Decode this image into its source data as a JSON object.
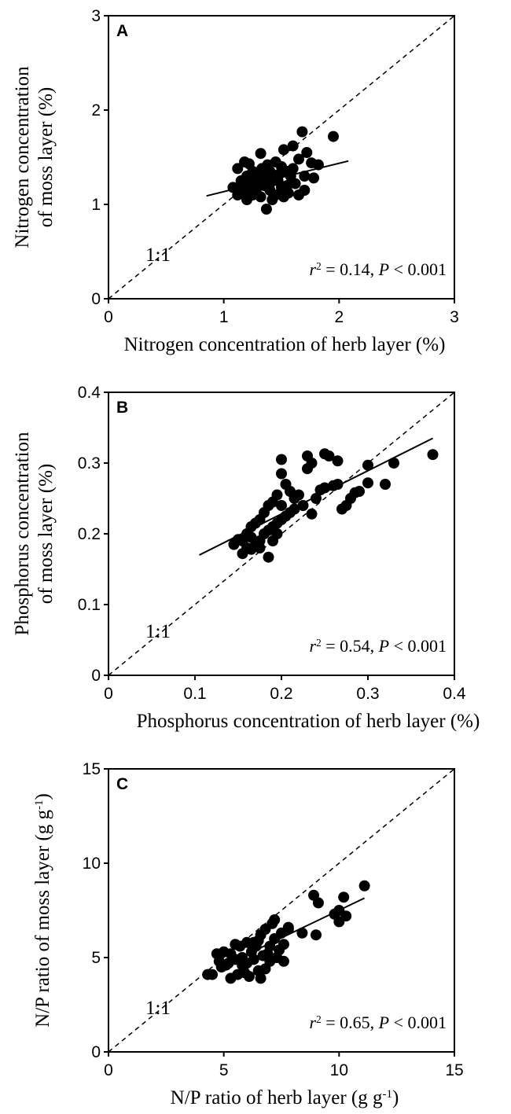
{
  "chart_data": [
    {
      "type": "scatter",
      "panel": "A",
      "xlabel": [
        [
          {
            "text": "Nitrogen concentration of herb layer (%)"
          }
        ]
      ],
      "ylabel": [
        [
          {
            "text": "Nitrogen concentration"
          }
        ],
        [
          {
            "text": "of  moss layer (%)"
          }
        ]
      ],
      "xlim": [
        0,
        3
      ],
      "ylim": [
        0,
        3
      ],
      "xticks": [
        0,
        1,
        2,
        3
      ],
      "yticks": [
        0,
        1,
        2,
        3
      ],
      "color": "#000000",
      "reference_label": "1:1",
      "stat_label": [
        {
          "text": "r",
          "italic": true
        },
        {
          "text": "2",
          "sup": true
        },
        {
          "text": " = 0.14, "
        },
        {
          "text": "P",
          "italic": true
        },
        {
          "text": " < 0.001"
        }
      ],
      "fit": {
        "x": [
          0.85,
          2.08
        ],
        "y": [
          1.09,
          1.46
        ]
      },
      "x": [
        1.95,
        1.68,
        1.6,
        1.52,
        1.32,
        1.72,
        1.82,
        1.76,
        1.65,
        1.45,
        1.38,
        1.18,
        1.22,
        1.12,
        1.25,
        1.3,
        1.35,
        1.4,
        1.48,
        1.55,
        1.6,
        1.7,
        1.78,
        1.62,
        1.55,
        1.5,
        1.45,
        1.4,
        1.35,
        1.28,
        1.22,
        1.18,
        1.15,
        1.08,
        1.12,
        1.2,
        1.25,
        1.32,
        1.37,
        1.42,
        1.52,
        1.65,
        1.7,
        1.58,
        1.47,
        1.3,
        1.2,
        1.4,
        1.33,
        1.27,
        1.16,
        1.23,
        1.5,
        1.56,
        1.44
      ],
      "y": [
        1.72,
        1.77,
        1.62,
        1.58,
        1.54,
        1.55,
        1.42,
        1.44,
        1.48,
        1.45,
        1.42,
        1.45,
        1.43,
        1.38,
        1.35,
        1.3,
        1.28,
        1.35,
        1.32,
        1.35,
        1.38,
        1.3,
        1.28,
        1.22,
        1.2,
        1.18,
        1.1,
        1.15,
        1.2,
        1.15,
        1.2,
        1.12,
        1.25,
        1.18,
        1.1,
        1.05,
        1.1,
        1.08,
        0.95,
        1.05,
        1.08,
        1.1,
        1.15,
        1.3,
        1.25,
        1.25,
        1.3,
        1.22,
        1.38,
        1.22,
        1.16,
        1.27,
        1.4,
        1.12,
        1.3
      ]
    },
    {
      "type": "scatter",
      "panel": "B",
      "xlabel": [
        [
          {
            "text": "Phosphorus concentration of herb layer (%)"
          }
        ]
      ],
      "ylabel": [
        [
          {
            "text": "Phosphorus concentration"
          }
        ],
        [
          {
            "text": "of  moss layer (%)"
          }
        ]
      ],
      "xlim": [
        0,
        0.4
      ],
      "ylim": [
        0,
        0.4
      ],
      "xticks": [
        0,
        0.1,
        0.2,
        0.3,
        0.4
      ],
      "yticks": [
        0,
        0.1,
        0.2,
        0.3,
        0.4
      ],
      "color": "#000000",
      "reference_label": "1:1",
      "stat_label": [
        {
          "text": "r",
          "italic": true
        },
        {
          "text": "2",
          "sup": true
        },
        {
          "text": " = 0.54, "
        },
        {
          "text": "P",
          "italic": true
        },
        {
          "text": " < 0.001"
        }
      ],
      "fit": {
        "x": [
          0.105,
          0.375
        ],
        "y": [
          0.17,
          0.335
        ]
      },
      "x": [
        0.375,
        0.33,
        0.32,
        0.3,
        0.3,
        0.29,
        0.285,
        0.28,
        0.275,
        0.27,
        0.265,
        0.25,
        0.255,
        0.23,
        0.235,
        0.23,
        0.2,
        0.2,
        0.205,
        0.21,
        0.215,
        0.22,
        0.24,
        0.245,
        0.26,
        0.265,
        0.25,
        0.235,
        0.225,
        0.195,
        0.19,
        0.185,
        0.18,
        0.175,
        0.17,
        0.165,
        0.16,
        0.155,
        0.15,
        0.145,
        0.155,
        0.16,
        0.165,
        0.17,
        0.175,
        0.18,
        0.185,
        0.19,
        0.195,
        0.2,
        0.205,
        0.21,
        0.2,
        0.185,
        0.19,
        0.175,
        0.195,
        0.165,
        0.215
      ],
      "y": [
        0.312,
        0.3,
        0.27,
        0.297,
        0.272,
        0.26,
        0.258,
        0.25,
        0.24,
        0.235,
        0.303,
        0.313,
        0.31,
        0.31,
        0.3,
        0.292,
        0.305,
        0.285,
        0.27,
        0.26,
        0.25,
        0.255,
        0.25,
        0.262,
        0.268,
        0.27,
        0.265,
        0.228,
        0.24,
        0.255,
        0.245,
        0.24,
        0.23,
        0.22,
        0.215,
        0.21,
        0.2,
        0.19,
        0.192,
        0.185,
        0.172,
        0.18,
        0.178,
        0.185,
        0.19,
        0.2,
        0.205,
        0.21,
        0.215,
        0.22,
        0.225,
        0.23,
        0.24,
        0.167,
        0.19,
        0.18,
        0.2,
        0.195,
        0.235
      ]
    },
    {
      "type": "scatter",
      "panel": "C",
      "xlabel": [
        [
          {
            "text": "N/P ratio of herb layer (g g"
          },
          {
            "text": "-1",
            "sup": true
          },
          {
            "text": ")"
          }
        ]
      ],
      "ylabel": [
        [
          {
            "text": "N/P ratio of moss layer (g g"
          },
          {
            "text": "-1",
            "sup": true
          },
          {
            "text": ")"
          }
        ]
      ],
      "xlim": [
        0,
        15
      ],
      "ylim": [
        0,
        15
      ],
      "xticks": [
        0,
        5,
        10,
        15
      ],
      "yticks": [
        0,
        5,
        10,
        15
      ],
      "color": "#000000",
      "reference_label": "1:1",
      "stat_label": [
        {
          "text": "r",
          "italic": true
        },
        {
          "text": "2",
          "sup": true
        },
        {
          "text": " = 0.65, "
        },
        {
          "text": "P",
          "italic": true
        },
        {
          "text": " < 0.001"
        }
      ],
      "fit": {
        "x": [
          5.8,
          11.1
        ],
        "y": [
          5.05,
          8.15
        ]
      },
      "x": [
        11.1,
        10.2,
        10.0,
        10.3,
        9.8,
        10.0,
        8.9,
        9.1,
        9.0,
        8.4,
        7.8,
        7.5,
        7.2,
        7.1,
        6.8,
        6.6,
        6.5,
        6.3,
        6.0,
        5.7,
        5.5,
        5.3,
        5.0,
        4.7,
        4.5,
        4.3,
        4.9,
        5.1,
        5.3,
        5.6,
        5.9,
        6.0,
        6.3,
        6.5,
        6.8,
        7.0,
        7.3,
        7.6,
        7.4,
        7.0,
        6.7,
        6.2,
        5.8,
        5.5,
        5.2,
        6.1,
        6.9,
        7.2,
        7.6,
        6.4,
        5.8,
        4.8,
        7.8,
        6.6
      ],
      "y": [
        8.8,
        8.2,
        7.5,
        7.2,
        7.3,
        6.9,
        8.3,
        7.9,
        6.2,
        6.3,
        6.5,
        6.3,
        7.0,
        6.8,
        6.5,
        6.2,
        5.9,
        5.8,
        5.8,
        5.6,
        5.7,
        5.2,
        5.3,
        5.2,
        4.1,
        4.1,
        4.5,
        4.6,
        3.9,
        4.1,
        4.2,
        4.7,
        4.9,
        4.3,
        4.4,
        4.8,
        5.0,
        4.8,
        5.4,
        5.6,
        5.1,
        5.3,
        5.0,
        4.9,
        4.7,
        4.0,
        5.2,
        6.0,
        5.7,
        5.6,
        4.6,
        4.8,
        6.6,
        3.9
      ]
    }
  ]
}
